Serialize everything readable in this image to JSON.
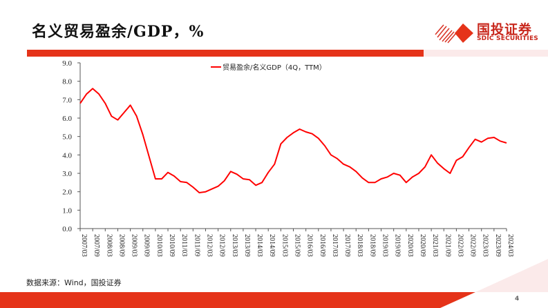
{
  "header": {
    "title": "名义贸易盈余/GDP，%",
    "logo_cn": "国投证券",
    "logo_en": "SDIC SECURITIES"
  },
  "colors": {
    "accent": "#e53319",
    "line": "#ff0000",
    "light_pink": "#fbeaea",
    "logo": "#c8271c"
  },
  "footer": {
    "source": "数据来源：Wind，国投证券",
    "page_number": "4"
  },
  "chart_data": {
    "type": "line",
    "title": "名义贸易盈余/GDP，%",
    "xlabel": "",
    "ylabel": "",
    "ylim": [
      0,
      9
    ],
    "yticks": [
      "0.0",
      "1.0",
      "2.0",
      "3.0",
      "4.0",
      "5.0",
      "6.0",
      "7.0",
      "8.0",
      "9.0"
    ],
    "grid": false,
    "legend_position": "top-center",
    "x_tick_labels": [
      "2007/03",
      "2007/09",
      "2008/03",
      "2008/09",
      "2009/03",
      "2009/09",
      "2010/03",
      "2010/09",
      "2011/03",
      "2011/09",
      "2012/03",
      "2012/09",
      "2013/03",
      "2013/09",
      "2014/03",
      "2014/09",
      "2015/03",
      "2015/09",
      "2016/03",
      "2016/09",
      "2017/03",
      "2017/09",
      "2018/03",
      "2018/09",
      "2019/03",
      "2019/09",
      "2020/03",
      "2020/09",
      "2021/03",
      "2021/09",
      "2022/03",
      "2022/09",
      "2023/03",
      "2023/09",
      "2024/03"
    ],
    "x": [
      "2007/03",
      "2007/06",
      "2007/09",
      "2007/12",
      "2008/03",
      "2008/06",
      "2008/09",
      "2008/12",
      "2009/03",
      "2009/06",
      "2009/09",
      "2009/12",
      "2010/03",
      "2010/06",
      "2010/09",
      "2010/12",
      "2011/03",
      "2011/06",
      "2011/09",
      "2011/12",
      "2012/03",
      "2012/06",
      "2012/09",
      "2012/12",
      "2013/03",
      "2013/06",
      "2013/09",
      "2013/12",
      "2014/03",
      "2014/06",
      "2014/09",
      "2014/12",
      "2015/03",
      "2015/06",
      "2015/09",
      "2015/12",
      "2016/03",
      "2016/06",
      "2016/09",
      "2016/12",
      "2017/03",
      "2017/06",
      "2017/09",
      "2017/12",
      "2018/03",
      "2018/06",
      "2018/09",
      "2018/12",
      "2019/03",
      "2019/06",
      "2019/09",
      "2019/12",
      "2020/03",
      "2020/06",
      "2020/09",
      "2020/12",
      "2021/03",
      "2021/06",
      "2021/09",
      "2021/12",
      "2022/03",
      "2022/06",
      "2022/09",
      "2022/12",
      "2023/03",
      "2023/06",
      "2023/09",
      "2023/12",
      "2024/03"
    ],
    "series": [
      {
        "name": "贸易盈余/名义GDP（4Q，TTM）",
        "color": "#ff0000",
        "values": [
          6.8,
          7.3,
          7.6,
          7.3,
          6.8,
          6.1,
          5.9,
          6.3,
          6.7,
          6.1,
          5.1,
          3.9,
          2.7,
          2.7,
          3.05,
          2.85,
          2.55,
          2.5,
          2.25,
          1.95,
          2.0,
          2.15,
          2.3,
          2.6,
          3.1,
          2.95,
          2.7,
          2.65,
          2.35,
          2.5,
          3.05,
          3.5,
          4.6,
          4.95,
          5.2,
          5.4,
          5.25,
          5.15,
          4.9,
          4.5,
          4.0,
          3.8,
          3.5,
          3.35,
          3.1,
          2.75,
          2.5,
          2.5,
          2.7,
          2.8,
          3.0,
          2.9,
          2.5,
          2.8,
          3.0,
          3.35,
          4.0,
          3.55,
          3.25,
          3.0,
          3.7,
          3.9,
          4.4,
          4.85,
          4.7,
          4.9,
          4.95,
          4.75,
          4.65
        ]
      }
    ]
  }
}
